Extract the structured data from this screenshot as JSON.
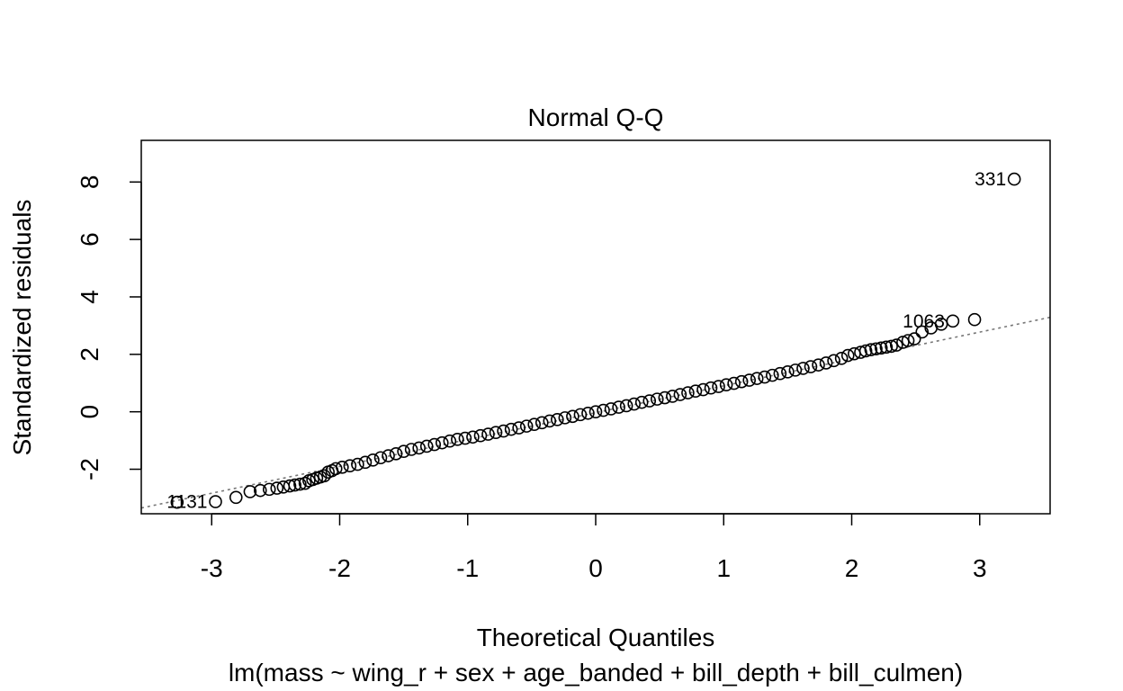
{
  "chart_data": {
    "type": "scatter",
    "title": "Normal Q-Q",
    "xlabel": "Theoretical Quantiles",
    "ylabel": "Standardized residuals",
    "subtitle": "lm(mass ~ wing_r + sex + age_banded + bill_depth + bill_culmen)",
    "xlim": [
      -3.55,
      3.55
    ],
    "ylim": [
      -3.55,
      9.45
    ],
    "x_ticks": [
      -3,
      -2,
      -1,
      0,
      1,
      2,
      3
    ],
    "x_tick_labels": [
      "-3",
      "-2",
      "-1",
      "0",
      "1",
      "2",
      "3"
    ],
    "y_ticks": [
      -2,
      0,
      2,
      4,
      6,
      8
    ],
    "y_tick_labels": [
      "-2",
      "0",
      "2",
      "4",
      "6",
      "8"
    ],
    "grid": false,
    "marker": "open-circle",
    "reference_line": {
      "style": "dotted",
      "color": "#777777",
      "intercept": -0.03,
      "slope": 0.935
    },
    "series": [
      {
        "points": [
          [
            -3.27,
            -3.15
          ],
          [
            -2.97,
            -3.13
          ],
          [
            -2.81,
            -2.98
          ],
          [
            -2.7,
            -2.78
          ],
          [
            -2.62,
            -2.74
          ],
          [
            -2.55,
            -2.7
          ],
          [
            -2.49,
            -2.66
          ],
          [
            -2.44,
            -2.62
          ],
          [
            -2.39,
            -2.58
          ],
          [
            -2.35,
            -2.55
          ],
          [
            -2.31,
            -2.52
          ],
          [
            -2.27,
            -2.49
          ],
          [
            -2.24,
            -2.4
          ],
          [
            -2.21,
            -2.36
          ],
          [
            -2.18,
            -2.31
          ],
          [
            -2.15,
            -2.27
          ],
          [
            -2.12,
            -2.23
          ],
          [
            -2.09,
            -2.1
          ],
          [
            -2.06,
            -2.05
          ],
          [
            -2.03,
            -1.98
          ],
          [
            -1.98,
            -1.93
          ],
          [
            -1.92,
            -1.88
          ],
          [
            -1.86,
            -1.83
          ],
          [
            -1.8,
            -1.76
          ],
          [
            -1.74,
            -1.68
          ],
          [
            -1.68,
            -1.6
          ],
          [
            -1.62,
            -1.53
          ],
          [
            -1.56,
            -1.46
          ],
          [
            -1.5,
            -1.38
          ],
          [
            -1.44,
            -1.31
          ],
          [
            -1.38,
            -1.26
          ],
          [
            -1.32,
            -1.2
          ],
          [
            -1.26,
            -1.14
          ],
          [
            -1.2,
            -1.08
          ],
          [
            -1.14,
            -1.02
          ],
          [
            -1.08,
            -0.96
          ],
          [
            -1.02,
            -0.92
          ],
          [
            -0.96,
            -0.88
          ],
          [
            -0.9,
            -0.83
          ],
          [
            -0.84,
            -0.78
          ],
          [
            -0.78,
            -0.72
          ],
          [
            -0.72,
            -0.67
          ],
          [
            -0.66,
            -0.61
          ],
          [
            -0.6,
            -0.56
          ],
          [
            -0.54,
            -0.5
          ],
          [
            -0.48,
            -0.44
          ],
          [
            -0.42,
            -0.38
          ],
          [
            -0.36,
            -0.32
          ],
          [
            -0.3,
            -0.27
          ],
          [
            -0.24,
            -0.21
          ],
          [
            -0.18,
            -0.16
          ],
          [
            -0.12,
            -0.1
          ],
          [
            -0.06,
            -0.05
          ],
          [
            0.0,
            0.0
          ],
          [
            0.06,
            0.05
          ],
          [
            0.12,
            0.1
          ],
          [
            0.18,
            0.16
          ],
          [
            0.24,
            0.21
          ],
          [
            0.3,
            0.27
          ],
          [
            0.36,
            0.33
          ],
          [
            0.42,
            0.38
          ],
          [
            0.48,
            0.44
          ],
          [
            0.54,
            0.49
          ],
          [
            0.6,
            0.54
          ],
          [
            0.66,
            0.6
          ],
          [
            0.72,
            0.66
          ],
          [
            0.78,
            0.72
          ],
          [
            0.84,
            0.77
          ],
          [
            0.9,
            0.83
          ],
          [
            0.96,
            0.88
          ],
          [
            1.02,
            0.94
          ],
          [
            1.08,
            0.99
          ],
          [
            1.14,
            1.05
          ],
          [
            1.2,
            1.1
          ],
          [
            1.26,
            1.16
          ],
          [
            1.32,
            1.21
          ],
          [
            1.38,
            1.27
          ],
          [
            1.44,
            1.33
          ],
          [
            1.5,
            1.39
          ],
          [
            1.56,
            1.45
          ],
          [
            1.62,
            1.51
          ],
          [
            1.68,
            1.57
          ],
          [
            1.74,
            1.63
          ],
          [
            1.8,
            1.7
          ],
          [
            1.86,
            1.78
          ],
          [
            1.92,
            1.86
          ],
          [
            1.97,
            1.96
          ],
          [
            2.02,
            2.02
          ],
          [
            2.07,
            2.07
          ],
          [
            2.11,
            2.12
          ],
          [
            2.15,
            2.16
          ],
          [
            2.19,
            2.19
          ],
          [
            2.23,
            2.22
          ],
          [
            2.27,
            2.25
          ],
          [
            2.31,
            2.28
          ],
          [
            2.35,
            2.32
          ],
          [
            2.4,
            2.42
          ],
          [
            2.44,
            2.48
          ],
          [
            2.49,
            2.54
          ],
          [
            2.55,
            2.78
          ],
          [
            2.62,
            2.92
          ],
          [
            2.7,
            3.05
          ],
          [
            2.79,
            3.16
          ],
          [
            2.96,
            3.21
          ],
          [
            3.27,
            8.1
          ]
        ]
      }
    ],
    "point_labels": [
      {
        "text": "1131",
        "x": -2.97,
        "y": -3.13,
        "pos": "left"
      },
      {
        "text": "1063",
        "x": 2.79,
        "y": 3.16,
        "pos": "left"
      },
      {
        "text": "331",
        "x": 3.27,
        "y": 8.1,
        "pos": "left"
      }
    ]
  }
}
